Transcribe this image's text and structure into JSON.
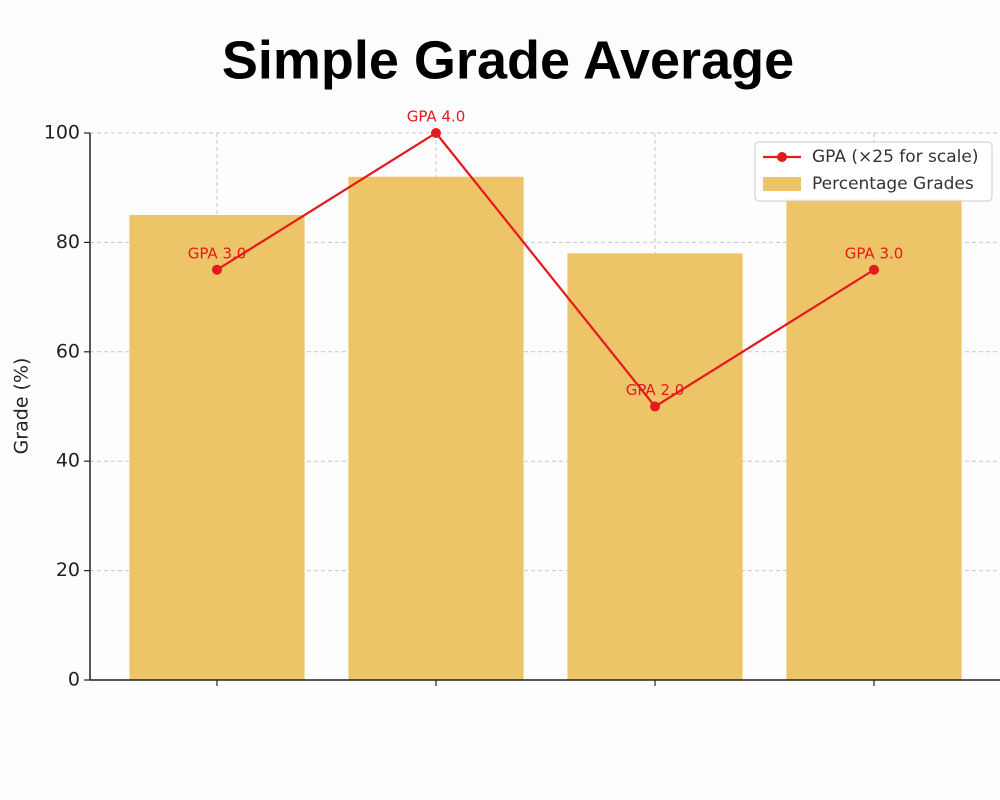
{
  "chart_data": {
    "type": "bar",
    "title": "Simple Grade Average",
    "y_label": "Grade (%)",
    "categories": [
      null,
      null,
      null,
      null
    ],
    "series": [
      {
        "name": "GPA (×25 for scale)",
        "type": "line",
        "color": "#e31a1c",
        "values": [
          75,
          100,
          50,
          75
        ],
        "value_labels": [
          "GPA 3.0",
          "GPA 4.0",
          "GPA 2.0",
          "GPA 3.0"
        ]
      },
      {
        "name": "Percentage Grades",
        "type": "bar",
        "color": "#edc468",
        "values": [
          85,
          92,
          78,
          88
        ]
      }
    ],
    "ylim": [
      0,
      100
    ],
    "yticks": [
      0,
      20,
      40,
      60,
      80,
      100
    ],
    "grid": true,
    "legend": "upper right"
  }
}
